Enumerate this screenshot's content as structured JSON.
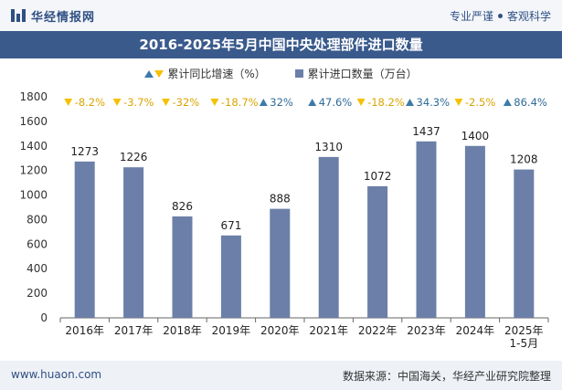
{
  "header": {
    "brand": "华经情报网",
    "slogan_left": "专业严谨",
    "slogan_right": "客观科学"
  },
  "title": "2016-2025年5月中国中央处理部件进口数量",
  "legend": {
    "growth_label": "累计同比增速（%）",
    "qty_label": "累计进口数量（万台）"
  },
  "chart_data": {
    "type": "bar",
    "title": "2016-2025年5月中国中央处理部件进口数量",
    "categories": [
      "2016年",
      "2017年",
      "2018年",
      "2019年",
      "2020年",
      "2021年",
      "2022年",
      "2023年",
      "2024年",
      "2025年\n1-5月"
    ],
    "series": [
      {
        "name": "累计进口数量（万台）",
        "values": [
          1273,
          1226,
          826,
          671,
          888,
          1310,
          1072,
          1437,
          1400,
          1208
        ]
      },
      {
        "name": "累计同比增速（%）",
        "values": [
          -8.2,
          -3.7,
          -32,
          -18.7,
          32,
          47.6,
          -18.2,
          34.3,
          -2.5,
          86.4
        ]
      }
    ],
    "growth_labels": [
      "-8.2%",
      "-3.7%",
      "-32%",
      "-18.7%",
      "32%",
      "47.6%",
      "-18.2%",
      "34.3%",
      "-2.5%",
      "86.4%"
    ],
    "y_ticks": [
      "0",
      "200",
      "400",
      "600",
      "800",
      "1000",
      "1200",
      "1400",
      "1600",
      "1800"
    ],
    "ylim": [
      0,
      1800
    ],
    "colors": {
      "bar": "#6b7fa8",
      "up": "#3d7aa8",
      "down": "#f6c000"
    }
  },
  "footer": {
    "url": "www.huaon.com",
    "source": "数据来源：中国海关，华经产业研究院整理"
  }
}
